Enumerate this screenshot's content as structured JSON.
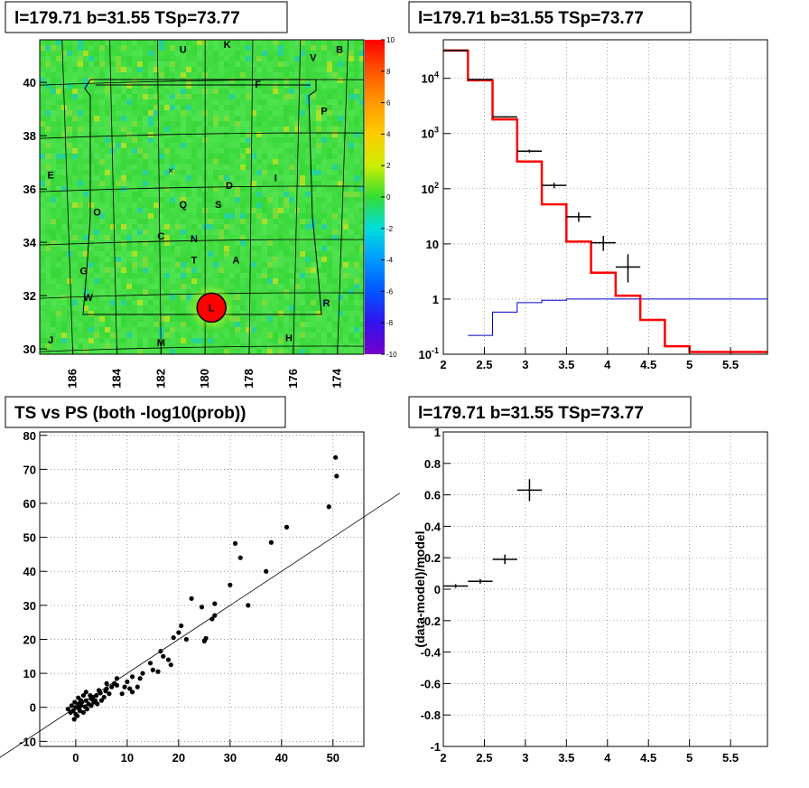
{
  "panels": {
    "map": {
      "title": "l=179.71 b=31.55 TSp=73.77"
    },
    "spectrum": {
      "title": "l=179.71 b=31.55 TSp=73.77"
    },
    "scatter": {
      "title": "TS vs PS (both -log10(prob))"
    },
    "residual": {
      "title": "l=179.71 b=31.55 TSp=73.77",
      "ylabel": "(data-model)/model"
    }
  },
  "colors": {
    "model_line": "#ff0000",
    "secondary_line": "#0000cc",
    "data": "#000000",
    "grid": "#777777",
    "source_marker": "#ff0000",
    "map_background": "#44dd44"
  },
  "chart_data": [
    {
      "type": "heatmap",
      "title": "l=179.71 b=31.55 TSp=73.77",
      "x_ticks": [
        "186",
        "184",
        "182",
        "180",
        "178",
        "176",
        "174"
      ],
      "y_ticks": [
        "30",
        "32",
        "34",
        "36",
        "38",
        "40"
      ],
      "xlim": [
        187.5,
        172.8
      ],
      "ylim": [
        29.8,
        41.6
      ],
      "colorbar_ticks": [
        "10",
        "8",
        "6",
        "4",
        "2",
        "0",
        "-2",
        "-4",
        "-6",
        "-8",
        "-10"
      ],
      "colorbar_range": [
        -10,
        10
      ],
      "source": {
        "l": 179.71,
        "b": 31.55,
        "label": "L"
      },
      "region_letters": [
        {
          "t": "K",
          "l": 179.0,
          "b": 41.3
        },
        {
          "t": "B",
          "l": 173.9,
          "b": 41.1
        },
        {
          "t": "U",
          "l": 181.0,
          "b": 41.1
        },
        {
          "t": "V",
          "l": 175.1,
          "b": 40.8
        },
        {
          "t": "F",
          "l": 177.6,
          "b": 39.8
        },
        {
          "t": "P",
          "l": 174.6,
          "b": 38.8
        },
        {
          "t": "E",
          "l": 187.0,
          "b": 36.4
        },
        {
          "t": "I",
          "l": 176.8,
          "b": 36.3
        },
        {
          "t": "D",
          "l": 178.9,
          "b": 36.0
        },
        {
          "t": "Q",
          "l": 181.0,
          "b": 35.3
        },
        {
          "t": "S",
          "l": 179.4,
          "b": 35.3
        },
        {
          "t": "O",
          "l": 184.9,
          "b": 35.0
        },
        {
          "t": "C",
          "l": 182.0,
          "b": 34.1
        },
        {
          "t": "N",
          "l": 180.5,
          "b": 34.0
        },
        {
          "t": "T",
          "l": 180.5,
          "b": 33.2
        },
        {
          "t": "A",
          "l": 178.6,
          "b": 33.2
        },
        {
          "t": "G",
          "l": 185.5,
          "b": 32.8
        },
        {
          "t": "W",
          "l": 185.3,
          "b": 31.8
        },
        {
          "t": "R",
          "l": 174.5,
          "b": 31.6
        },
        {
          "t": "H",
          "l": 176.2,
          "b": 30.3
        },
        {
          "t": "J",
          "l": 187.0,
          "b": 30.2
        },
        {
          "t": "M",
          "l": 182.0,
          "b": 30.1
        }
      ]
    },
    {
      "type": "line",
      "title": "l=179.71 b=31.55 TSp=73.77",
      "yscale": "log",
      "xlim": [
        2,
        5.95
      ],
      "ylim": [
        0.1,
        50000
      ],
      "x_ticks": [
        "2",
        "2.5",
        "3",
        "3.5",
        "4",
        "4.5",
        "5",
        "5.5"
      ],
      "y_ticks": [
        "10^-1",
        "1",
        "10",
        "10^2",
        "10^3",
        "10^4"
      ],
      "model_steps": [
        {
          "x0": 2.0,
          "x1": 2.3,
          "y": 32000
        },
        {
          "x0": 2.3,
          "x1": 2.6,
          "y": 9200
        },
        {
          "x0": 2.6,
          "x1": 2.9,
          "y": 1800
        },
        {
          "x0": 2.9,
          "x1": 3.2,
          "y": 310
        },
        {
          "x0": 3.2,
          "x1": 3.5,
          "y": 52
        },
        {
          "x0": 3.5,
          "x1": 3.8,
          "y": 11
        },
        {
          "x0": 3.8,
          "x1": 4.1,
          "y": 3
        },
        {
          "x0": 4.1,
          "x1": 4.4,
          "y": 1.15
        },
        {
          "x0": 4.4,
          "x1": 4.7,
          "y": 0.42
        },
        {
          "x0": 4.7,
          "x1": 5.0,
          "y": 0.14
        },
        {
          "x0": 5.0,
          "x1": 5.95,
          "y": 0.11
        }
      ],
      "secondary_steps": [
        {
          "x0": 2.3,
          "x1": 2.6,
          "y": 0.22
        },
        {
          "x0": 2.6,
          "x1": 2.9,
          "y": 0.58
        },
        {
          "x0": 2.9,
          "x1": 3.2,
          "y": 0.86
        },
        {
          "x0": 3.2,
          "x1": 3.5,
          "y": 0.95
        },
        {
          "x0": 3.5,
          "x1": 5.95,
          "y": 1.0
        }
      ],
      "data_points": [
        {
          "x": 2.15,
          "y": 32000,
          "xerr": 0.15,
          "ylo": 31600,
          "yhi": 32400
        },
        {
          "x": 2.45,
          "y": 9500,
          "xerr": 0.15,
          "ylo": 9350,
          "yhi": 9650
        },
        {
          "x": 2.75,
          "y": 2000,
          "xerr": 0.15,
          "ylo": 1950,
          "yhi": 2050
        },
        {
          "x": 3.05,
          "y": 480,
          "xerr": 0.15,
          "ylo": 450,
          "yhi": 510
        },
        {
          "x": 3.35,
          "y": 115,
          "xerr": 0.15,
          "ylo": 102,
          "yhi": 128
        },
        {
          "x": 3.65,
          "y": 31,
          "xerr": 0.15,
          "ylo": 25,
          "yhi": 37
        },
        {
          "x": 3.95,
          "y": 10.5,
          "xerr": 0.15,
          "ylo": 7.5,
          "yhi": 14
        },
        {
          "x": 4.25,
          "y": 3.8,
          "xerr": 0.15,
          "ylo": 2.0,
          "yhi": 6.5
        }
      ]
    },
    {
      "type": "scatter",
      "title": "TS vs PS (both -log10(prob))",
      "xlim": [
        -7,
        56
      ],
      "ylim": [
        -11.5,
        81
      ],
      "x_ticks": [
        "0",
        "10",
        "20",
        "30",
        "40",
        "50"
      ],
      "y_ticks": [
        "-10",
        "0",
        "10",
        "20",
        "30",
        "40",
        "50",
        "60",
        "70",
        "80"
      ],
      "reference_line": {
        "slope": 1,
        "intercept": 0
      },
      "points": [
        [
          50.5,
          73.5
        ],
        [
          50.7,
          68.0
        ],
        [
          49.2,
          59.0
        ],
        [
          41.0,
          53.0
        ],
        [
          38.0,
          48.5
        ],
        [
          31.0,
          48.2
        ],
        [
          32.0,
          44.0
        ],
        [
          37.0,
          40.0
        ],
        [
          30.0,
          36.0
        ],
        [
          33.5,
          30.0
        ],
        [
          22.5,
          32.0
        ],
        [
          24.5,
          29.5
        ],
        [
          27.0,
          30.5
        ],
        [
          26.5,
          26.0
        ],
        [
          27.0,
          27.0
        ],
        [
          20.5,
          24.0
        ],
        [
          20.0,
          22.0
        ],
        [
          21.5,
          20.0
        ],
        [
          25.0,
          19.5
        ],
        [
          25.3,
          20.3
        ],
        [
          19.0,
          20.5
        ],
        [
          16.5,
          16.5
        ],
        [
          17.0,
          15.0
        ],
        [
          18.0,
          14.0
        ],
        [
          18.5,
          12.5
        ],
        [
          14.5,
          13.0
        ],
        [
          15.0,
          11.0
        ],
        [
          16.0,
          10.5
        ],
        [
          13.0,
          10.0
        ],
        [
          12.5,
          8.5
        ],
        [
          11.0,
          9.0
        ],
        [
          10.0,
          7.5
        ],
        [
          9.5,
          6.0
        ],
        [
          10.5,
          5.5
        ],
        [
          12.0,
          6.0
        ],
        [
          9.0,
          4.0
        ],
        [
          11.0,
          4.5
        ],
        [
          8.0,
          6.5
        ],
        [
          7.0,
          6.0
        ],
        [
          6.0,
          5.5
        ],
        [
          6.5,
          4.0
        ],
        [
          5.5,
          3.0
        ],
        [
          5.0,
          2.0
        ],
        [
          6.0,
          7.0
        ],
        [
          4.5,
          5.0
        ],
        [
          8.0,
          8.5
        ],
        [
          7.5,
          7.0
        ],
        [
          4.0,
          3.5
        ],
        [
          3.5,
          1.5
        ],
        [
          3.0,
          2.5
        ],
        [
          2.0,
          4.5
        ],
        [
          1.5,
          3.5
        ],
        [
          2.5,
          1.0
        ],
        [
          1.0,
          2.0
        ],
        [
          0.5,
          1.0
        ],
        [
          0.0,
          0.0
        ],
        [
          -0.5,
          -1.0
        ],
        [
          -1.0,
          -1.5
        ],
        [
          0.3,
          -2.5
        ],
        [
          -0.3,
          -3.5
        ],
        [
          1.0,
          0.5
        ],
        [
          0.8,
          -1.0
        ],
        [
          1.8,
          0.2
        ],
        [
          2.2,
          -0.5
        ],
        [
          3.0,
          0.5
        ],
        [
          -0.8,
          0.5
        ],
        [
          -1.5,
          -0.5
        ],
        [
          0.5,
          2.8
        ],
        [
          1.2,
          1.5
        ],
        [
          2.8,
          3.5
        ],
        [
          3.8,
          2.0
        ],
        [
          4.2,
          1.0
        ],
        [
          0.0,
          -2.0
        ],
        [
          -0.2,
          1.5
        ],
        [
          1.5,
          -1.5
        ],
        [
          0.6,
          -0.3
        ],
        [
          2.0,
          2.0
        ],
        [
          3.3,
          3.0
        ],
        [
          4.8,
          4.2
        ],
        [
          5.8,
          4.8
        ]
      ]
    },
    {
      "type": "scatter",
      "title": "l=179.71 b=31.55 TSp=73.77",
      "ylabel": "(data-model)/model",
      "xlim": [
        2,
        5.95
      ],
      "ylim": [
        -1,
        1
      ],
      "x_ticks": [
        "2",
        "2.5",
        "3",
        "3.5",
        "4",
        "4.5",
        "5",
        "5.5"
      ],
      "y_ticks": [
        "-1",
        "-0.8",
        "-0.6",
        "-0.4",
        "-0.2",
        "0",
        "0.2",
        "0.4",
        "0.6",
        "0.8",
        "1"
      ],
      "points": [
        {
          "x": 2.15,
          "y": 0.02,
          "xerr": 0.15,
          "yerr": 0.012
        },
        {
          "x": 2.45,
          "y": 0.05,
          "xerr": 0.15,
          "yerr": 0.015
        },
        {
          "x": 2.75,
          "y": 0.19,
          "xerr": 0.15,
          "yerr": 0.03
        },
        {
          "x": 3.05,
          "y": 0.63,
          "xerr": 0.15,
          "yerr": 0.07
        }
      ]
    }
  ]
}
